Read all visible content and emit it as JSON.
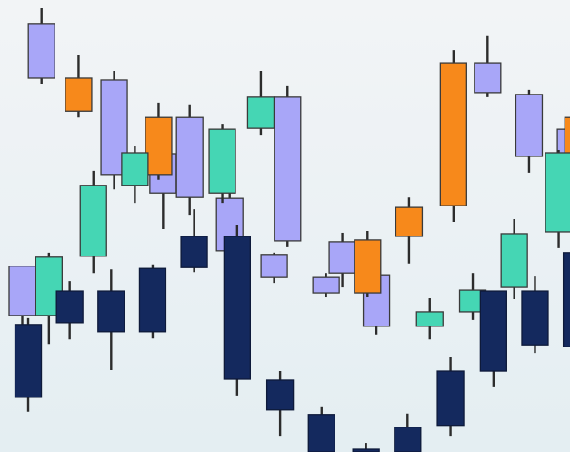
{
  "colors": {
    "lavender": "#a8a6f8",
    "orange": "#f7891b",
    "teal": "#45d6b4",
    "navy": "#14295e",
    "wick": "#2c2c2c",
    "background_top": "#f2f4f6",
    "background_bottom": "#e4eef2"
  },
  "chart_data": {
    "type": "candlestick",
    "title": "",
    "xlabel": "",
    "ylabel": "",
    "axes_visible": false,
    "grid": false,
    "legend": "none",
    "ylim": [
      0,
      100
    ],
    "series": [
      {
        "color_key": "lavender",
        "candles": [
          {
            "x": 1.3,
            "high": 98.2,
            "open": 94.8,
            "close": 82.7,
            "low": 81.5
          },
          {
            "x": 0.0,
            "high": 41.1,
            "open": 41.1,
            "close": 30.2,
            "low": 28.2
          },
          {
            "x": 6.2,
            "high": 84.3,
            "open": 82.3,
            "close": 61.4,
            "low": 58.1
          },
          {
            "x": 9.5,
            "high": 66.0,
            "open": 66.0,
            "close": 57.3,
            "low": 49.3
          },
          {
            "x": 11.3,
            "high": 76.9,
            "open": 74.0,
            "close": 56.3,
            "low": 52.5
          },
          {
            "x": 14.0,
            "high": 59.0,
            "open": 56.1,
            "close": 44.5,
            "low": 42.3
          },
          {
            "x": 17.0,
            "high": 44.1,
            "open": 43.7,
            "close": 38.6,
            "low": 37.4
          },
          {
            "x": 17.9,
            "high": 80.9,
            "open": 78.5,
            "close": 46.7,
            "low": 45.3
          },
          {
            "x": 20.5,
            "high": 39.6,
            "open": 38.6,
            "close": 35.2,
            "low": 34.2
          },
          {
            "x": 21.6,
            "high": 48.5,
            "open": 46.5,
            "close": 39.6,
            "low": 36.4
          },
          {
            "x": 23.9,
            "high": 39.6,
            "open": 39.2,
            "close": 27.8,
            "low": 26.0
          },
          {
            "x": 31.4,
            "high": 92.0,
            "open": 86.1,
            "close": 79.5,
            "low": 78.5
          },
          {
            "x": 34.2,
            "high": 80.1,
            "open": 79.1,
            "close": 65.4,
            "low": 61.8
          },
          {
            "x": 37.0,
            "high": 74.0,
            "open": 71.4,
            "close": 59.0,
            "low": 53.5
          }
        ]
      },
      {
        "color_key": "orange",
        "candles": [
          {
            "x": 3.8,
            "high": 87.9,
            "open": 82.7,
            "close": 75.4,
            "low": 74.0
          },
          {
            "x": 9.2,
            "high": 77.3,
            "open": 74.0,
            "close": 61.4,
            "low": 60.2
          },
          {
            "x": 23.3,
            "high": 48.9,
            "open": 46.9,
            "close": 35.2,
            "low": 34.2
          },
          {
            "x": 26.1,
            "high": 56.3,
            "open": 54.1,
            "close": 47.7,
            "low": 41.7
          },
          {
            "x": 29.1,
            "high": 88.9,
            "open": 86.1,
            "close": 54.5,
            "low": 50.9
          },
          {
            "x": 37.5,
            "high": 75.4,
            "open": 74.0,
            "close": 65.8,
            "low": 62.4
          }
        ]
      },
      {
        "color_key": "teal",
        "candles": [
          {
            "x": 1.8,
            "high": 44.1,
            "open": 43.1,
            "close": 30.2,
            "low": 23.9
          },
          {
            "x": 4.8,
            "high": 62.2,
            "open": 59.0,
            "close": 43.3,
            "low": 39.6
          },
          {
            "x": 7.6,
            "high": 67.6,
            "open": 66.2,
            "close": 59.0,
            "low": 55.1
          },
          {
            "x": 13.5,
            "high": 72.6,
            "open": 71.4,
            "close": 57.3,
            "low": 55.1
          },
          {
            "x": 16.1,
            "high": 84.3,
            "open": 78.5,
            "close": 71.6,
            "low": 70.2
          },
          {
            "x": 27.5,
            "high": 34.0,
            "open": 31.0,
            "close": 27.8,
            "low": 24.9
          },
          {
            "x": 30.4,
            "high": 39.6,
            "open": 35.8,
            "close": 31.0,
            "low": 29.2
          },
          {
            "x": 33.2,
            "high": 51.5,
            "open": 48.3,
            "close": 36.4,
            "low": 33.8
          },
          {
            "x": 36.2,
            "high": 66.8,
            "open": 66.2,
            "close": 48.7,
            "low": 45.1
          }
        ]
      },
      {
        "color_key": "navy",
        "candles": [
          {
            "x": 0.4,
            "high": 29.6,
            "open": 28.2,
            "close": 12.1,
            "low": 8.9
          },
          {
            "x": 3.2,
            "high": 37.8,
            "open": 35.6,
            "close": 28.6,
            "low": 24.9
          },
          {
            "x": 6.0,
            "high": 40.4,
            "open": 35.6,
            "close": 26.6,
            "low": 18.1
          },
          {
            "x": 8.8,
            "high": 41.5,
            "open": 40.6,
            "close": 26.6,
            "low": 25.1
          },
          {
            "x": 11.6,
            "high": 53.7,
            "open": 47.7,
            "close": 40.8,
            "low": 39.8
          },
          {
            "x": 14.5,
            "high": 50.3,
            "open": 47.7,
            "close": 16.1,
            "low": 12.5
          },
          {
            "x": 17.4,
            "high": 17.9,
            "open": 15.9,
            "close": 9.3,
            "low": 3.6
          },
          {
            "x": 20.2,
            "high": 10.1,
            "open": 8.3,
            "close": 0.0,
            "low": 0.0
          },
          {
            "x": 23.2,
            "high": 2.0,
            "open": 0.6,
            "close": 0.0,
            "low": 0.0
          },
          {
            "x": 26.0,
            "high": 8.5,
            "open": 5.5,
            "close": 0.0,
            "low": 0.0
          },
          {
            "x": 28.9,
            "high": 21.1,
            "open": 17.9,
            "close": 5.9,
            "low": 3.6
          },
          {
            "x": 31.8,
            "high": 35.6,
            "open": 35.6,
            "close": 17.9,
            "low": 14.5
          },
          {
            "x": 34.6,
            "high": 38.8,
            "open": 35.6,
            "close": 23.7,
            "low": 21.9
          },
          {
            "x": 37.4,
            "high": 45.3,
            "open": 44.1,
            "close": 23.3,
            "low": 21.1
          }
        ]
      }
    ]
  }
}
